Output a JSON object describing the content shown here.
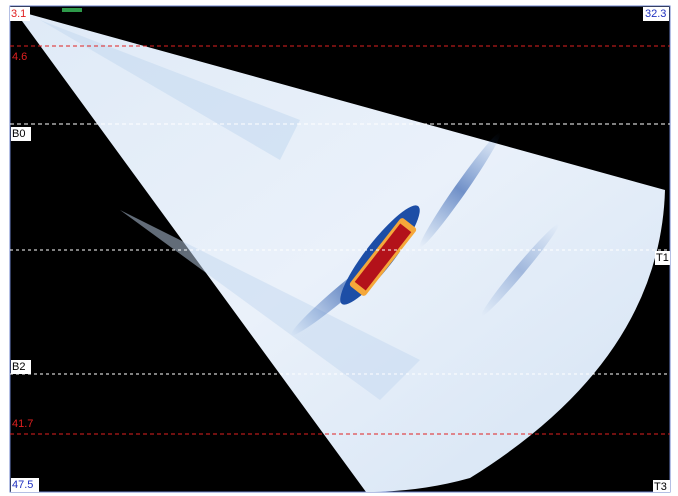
{
  "scan_view": {
    "labels": {
      "top_left": "3.1",
      "top_right": "32.3",
      "gate_upper": "4.6",
      "b0": "B0",
      "t1": "T1",
      "b2": "B2",
      "gate_lower": "41.7",
      "bottom_left": "47.5",
      "t3": "T3"
    }
  }
}
